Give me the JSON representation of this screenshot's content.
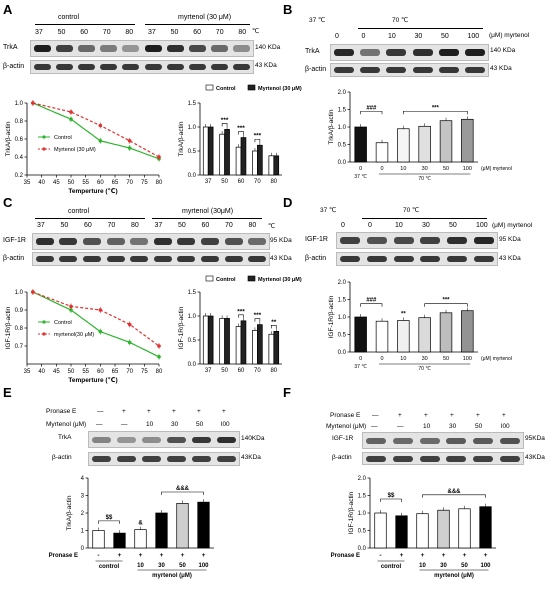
{
  "panelA": {
    "letter": "A",
    "group_control": "control",
    "group_treated": "myrtenol  (30 μM)",
    "temps": [
      "37",
      "50",
      "60",
      "70",
      "80",
      "37",
      "50",
      "60",
      "70",
      "80"
    ],
    "unit": "℃",
    "rows": [
      {
        "name": "TrkA",
        "size": "140 KDa"
      },
      {
        "name": "β-actin",
        "size": "43 KDa"
      }
    ]
  },
  "panelB": {
    "letter": "B",
    "temp_a": "37 ℃",
    "temp_b": "70 ℃",
    "conc_label": "(μM) myrtenol",
    "concs": [
      "0",
      "0",
      "10",
      "30",
      "50",
      "100"
    ],
    "rows": [
      {
        "name": "TrkA",
        "size": "140 KDa"
      },
      {
        "name": "β-actin",
        "size": "43 KDa"
      }
    ]
  },
  "panelC": {
    "letter": "C",
    "group_control": "control",
    "group_treated": "myrtenol  (30μM)",
    "temps": [
      "37",
      "50",
      "60",
      "70",
      "80",
      "37",
      "50",
      "60",
      "70",
      "80"
    ],
    "unit": "℃",
    "rows": [
      {
        "name": "IGF-1R",
        "size": "95 KDa"
      },
      {
        "name": "β-actin",
        "size": "43 KDa"
      }
    ]
  },
  "panelD": {
    "letter": "D",
    "temp_a": "37 ℃",
    "temp_b": "70 ℃",
    "conc_label": "(μM) myrtenol",
    "concs": [
      "0",
      "0",
      "10",
      "30",
      "50",
      "100"
    ],
    "rows": [
      {
        "name": "IGF-1R",
        "size": "95 KDa"
      },
      {
        "name": "β-actin",
        "size": "43 KDa"
      }
    ]
  },
  "panelE": {
    "letter": "E",
    "pronase_label": "Pronase E",
    "pronase": [
      "—",
      "+",
      "+",
      "+",
      "+",
      "+"
    ],
    "myrtenol_label": "Myrtenol (μM)",
    "myrtenol": [
      "—",
      "—",
      "10",
      "30",
      "50",
      "l00"
    ],
    "rows": [
      {
        "name": "TrkA",
        "size": "140KDa"
      },
      {
        "name": "β-actin",
        "size": "43KDa"
      }
    ]
  },
  "panelF": {
    "letter": "F",
    "pronase_label": "Pronase E",
    "pronase": [
      "—",
      "+",
      "+",
      "+",
      "+",
      "+"
    ],
    "myrtenol_label": "Myrtenol (μM)",
    "myrtenol": [
      "—",
      "—",
      "10",
      "30",
      "50",
      "l00"
    ],
    "rows": [
      {
        "name": "IGF-1R",
        "size": "95KDa"
      },
      {
        "name": "β-actin",
        "size": "43KDa"
      }
    ]
  },
  "chart_data": [
    {
      "id": "A-line",
      "type": "line",
      "xlabel": "Temperture (℃)",
      "ylabel": "TrkA/β-actin",
      "xlim": [
        35,
        80
      ],
      "ylim": [
        0.2,
        1.0
      ],
      "xticks": [
        "35",
        "40",
        "45",
        "50",
        "55",
        "60",
        "65",
        "70",
        "75",
        "80"
      ],
      "yticks": [
        "0.2",
        "0.4",
        "0.6",
        "0.8",
        "1.0"
      ],
      "legend_position": "left",
      "series": [
        {
          "name": "Control",
          "color": "#2db52d",
          "dash": false,
          "x": [
            37,
            50,
            60,
            70,
            80
          ],
          "y": [
            1.0,
            0.82,
            0.58,
            0.5,
            0.38
          ]
        },
        {
          "name": "Myrtenol (30 μM)",
          "color": "#e03030",
          "dash": true,
          "x": [
            37,
            50,
            60,
            70,
            80
          ],
          "y": [
            1.0,
            0.9,
            0.75,
            0.58,
            0.4
          ]
        }
      ]
    },
    {
      "id": "A-bar",
      "type": "bar",
      "ylabel": "TrkA/β-actin",
      "ylim": [
        0,
        1.5
      ],
      "yticks": [
        "0.0",
        "0.5",
        "1.0",
        "1.5"
      ],
      "categories": [
        "37",
        "50",
        "60",
        "70",
        "80"
      ],
      "legend_position": "top",
      "series": [
        {
          "name": "Control",
          "color": "#ffffff",
          "values": [
            1.0,
            0.85,
            0.58,
            0.5,
            0.4
          ]
        },
        {
          "name": "Myrtenol (30 μM)",
          "color": "#222222",
          "values": [
            1.0,
            0.95,
            0.78,
            0.62,
            0.4
          ]
        }
      ],
      "significance": [
        {
          "group": 1,
          "label": "***"
        },
        {
          "group": 2,
          "label": "***"
        },
        {
          "group": 3,
          "label": "***"
        }
      ]
    },
    {
      "id": "B-bar",
      "type": "bar",
      "ylabel": "TrkA/β-actin",
      "ylim": [
        0,
        2.0
      ],
      "yticks": [
        "0.0",
        "0.5",
        "1.0",
        "1.5",
        "2.0"
      ],
      "categories": [
        "0",
        "0",
        "10",
        "30",
        "50",
        "100"
      ],
      "group_labels": [
        "37 ℃",
        "70 ℃"
      ],
      "x_unit": "(μM) myrtenol",
      "series": [
        {
          "name": "",
          "colors": [
            "#111111",
            "#ffffff",
            "#f5f5f5",
            "#e0e0e0",
            "#c4c4c4",
            "#9a9a9a"
          ],
          "values": [
            1.0,
            0.55,
            0.95,
            1.02,
            1.18,
            1.22
          ]
        }
      ],
      "significance": [
        {
          "label": "###"
        },
        {
          "label": "***"
        }
      ]
    },
    {
      "id": "C-line",
      "type": "line",
      "xlabel": "Temperture (℃)",
      "ylabel": "IGF-1R/β-actin",
      "xlim": [
        35,
        80
      ],
      "ylim": [
        0.6,
        1.0
      ],
      "xticks": [
        "35",
        "40",
        "45",
        "50",
        "55",
        "60",
        "65",
        "70",
        "75",
        "80"
      ],
      "yticks": [
        "0.7",
        "0.8",
        "0.9",
        "1.0"
      ],
      "legend_position": "left",
      "series": [
        {
          "name": "Control",
          "color": "#2db52d",
          "dash": false,
          "x": [
            37,
            50,
            60,
            70,
            80
          ],
          "y": [
            1.0,
            0.9,
            0.78,
            0.72,
            0.64
          ]
        },
        {
          "name": "myrtenol(30 μM)",
          "color": "#e03030",
          "dash": true,
          "x": [
            37,
            50,
            60,
            70,
            80
          ],
          "y": [
            1.0,
            0.92,
            0.9,
            0.82,
            0.7
          ]
        }
      ]
    },
    {
      "id": "C-bar",
      "type": "bar",
      "ylabel": "IGF-1R/β-actin",
      "ylim": [
        0,
        1.5
      ],
      "yticks": [
        "0.0",
        "0.5",
        "1.0",
        "1.5"
      ],
      "categories": [
        "37",
        "50",
        "60",
        "70",
        "80"
      ],
      "legend_position": "top",
      "series": [
        {
          "name": "Control",
          "color": "#ffffff",
          "values": [
            1.0,
            0.95,
            0.78,
            0.7,
            0.62
          ]
        },
        {
          "name": "Myrtenol (30 μM)",
          "color": "#222222",
          "values": [
            1.0,
            0.95,
            0.9,
            0.82,
            0.68
          ]
        }
      ],
      "significance": [
        {
          "group": 2,
          "label": "***"
        },
        {
          "group": 3,
          "label": "***"
        },
        {
          "group": 4,
          "label": "**"
        }
      ]
    },
    {
      "id": "D-bar",
      "type": "bar",
      "ylabel": "IGF-1R/β-actin",
      "ylim": [
        0,
        2.0
      ],
      "yticks": [
        "0.0",
        "0.5",
        "1.0",
        "1.5",
        "2.0"
      ],
      "categories": [
        "0",
        "0",
        "10",
        "30",
        "50",
        "100"
      ],
      "group_labels": [
        "37 ℃",
        "70 ℃"
      ],
      "x_unit": "(μM) myrtenol",
      "series": [
        {
          "name": "",
          "colors": [
            "#111111",
            "#ffffff",
            "#f0f0f0",
            "#dadada",
            "#bdbdbd",
            "#939393"
          ],
          "values": [
            1.0,
            0.88,
            0.9,
            0.98,
            1.12,
            1.18
          ]
        }
      ],
      "significance": [
        {
          "label": "###"
        },
        {
          "label": "**"
        },
        {
          "label": "***"
        }
      ]
    },
    {
      "id": "E-bar",
      "type": "bar",
      "ylabel": "TrkA/β-actin",
      "ylim": [
        0,
        4
      ],
      "yticks": [
        "0",
        "1",
        "2",
        "3",
        "4"
      ],
      "categories": [
        "control",
        "control",
        "10",
        "30",
        "50",
        "100"
      ],
      "pronase": [
        "-",
        "+",
        "+",
        "+",
        "+",
        "+"
      ],
      "group_label": "myrtenol (μM)",
      "series": [
        {
          "name": "",
          "colors": [
            "#ffffff",
            "#000000",
            "#ffffff",
            "#000000",
            "#cfcfcf",
            "#000000"
          ],
          "values": [
            1.0,
            0.85,
            1.05,
            2.0,
            2.55,
            2.62
          ]
        }
      ],
      "significance": [
        {
          "label": "$$"
        },
        {
          "label": "&"
        },
        {
          "label": "&&&"
        }
      ]
    },
    {
      "id": "F-bar",
      "type": "bar",
      "ylabel": "IGF-1R/β-actin",
      "ylim": [
        0,
        2.0
      ],
      "yticks": [
        "0.0",
        "0.5",
        "1.0",
        "1.5",
        "2.0"
      ],
      "categories": [
        "control",
        "control",
        "10",
        "30",
        "50",
        "100"
      ],
      "pronase": [
        "-",
        "+",
        "+",
        "+",
        "+",
        "+"
      ],
      "group_label": "myrtenol (μM)",
      "series": [
        {
          "name": "",
          "colors": [
            "#ffffff",
            "#000000",
            "#ffffff",
            "#cfcfcf",
            "#ffffff",
            "#000000"
          ],
          "values": [
            1.0,
            0.92,
            0.98,
            1.08,
            1.12,
            1.18
          ]
        }
      ],
      "significance": [
        {
          "label": "$$"
        },
        {
          "label": "&&&"
        }
      ]
    }
  ]
}
